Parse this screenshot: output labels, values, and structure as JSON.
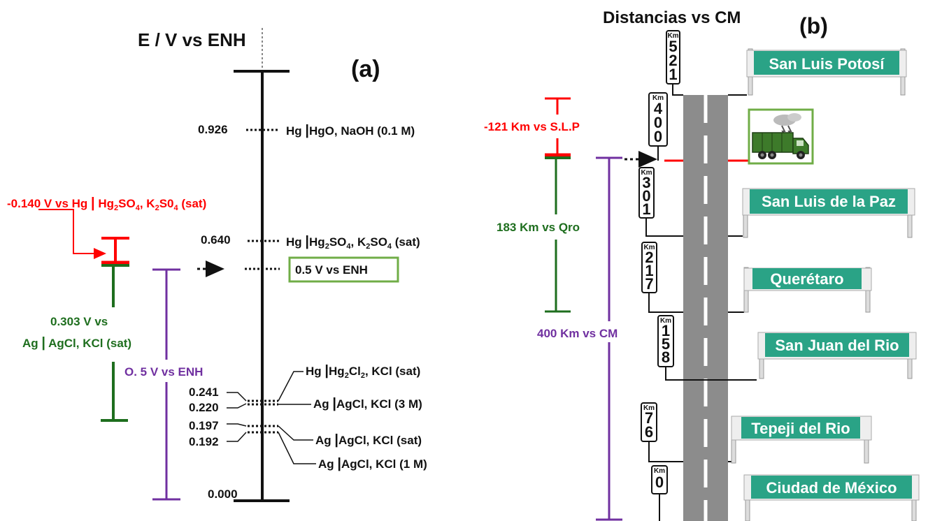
{
  "panel_a": {
    "axis_title": "E / V vs ENH",
    "label": "(a)",
    "colors": {
      "red": "#ff0000",
      "green": "#1e6e1e",
      "purple": "#7030a0",
      "box": "#70ad47",
      "black": "#111111"
    },
    "levels": {
      "hgo": {
        "value": "0.926",
        "electrode": "Hg",
        "sep": "|",
        "solution": "HgO, NaOH (0.1 M)"
      },
      "hg2so4": {
        "value": "0.640",
        "electrode": "Hg",
        "sep": "|",
        "solution_1": "Hg",
        "sub_1": "2",
        "solution_2": "SO",
        "sub_2": "4",
        "solution_3": ", K",
        "sub_3": "2",
        "solution_4": "SO",
        "sub_4": "4",
        "solution_5": " (sat)"
      },
      "target": {
        "boxed": "0.5 V vs ENH"
      },
      "calomel": {
        "electrode": "Hg",
        "sep": "|",
        "p1": "Hg",
        "s1": "2",
        "p2": "Cl",
        "s2": "2",
        "p3": ", KCl (sat)"
      },
      "agcl_3m": {
        "value": "0.220",
        "electrode": "Ag",
        "sep": "|",
        "solution": "AgCl, KCl (3 M)"
      },
      "agcl_sat": {
        "value": "0.197",
        "electrode": "Ag",
        "sep": "|",
        "solution": "AgCl, KCl (sat)"
      },
      "agcl_1m": {
        "value": "0.192",
        "electrode": "Ag",
        "sep": "|",
        "solution": "AgCl, KCl (1 M)"
      },
      "calomel_value": "0.241",
      "zero": "0.000"
    },
    "red_label": {
      "t1": "-0.140 V vs Hg ",
      "sep": "|",
      "t2": " Hg",
      "s1": "2",
      "t3": "SO",
      "s2": "4",
      "t4": ", K",
      "s3": "2",
      "t5": "S0",
      "s4": "4",
      "t6": " (sat)"
    },
    "green_label": {
      "line1": "0.303 V vs",
      "line2_a": "Ag ",
      "sep": "|",
      "line2_b": " AgCl, KCl (sat)"
    },
    "purple_label": "O. 5 V vs ENH"
  },
  "panel_b": {
    "title": "Distancias vs CM",
    "label": "(b)",
    "red_label": "-121 Km vs  S.L.P",
    "green_label": "183 Km vs Qro",
    "purple_label": "400 Km vs CM",
    "km_prefix": "Km",
    "markers": [
      {
        "km": "521",
        "digits": [
          "5",
          "2",
          "1"
        ]
      },
      {
        "km": "400",
        "digits": [
          "4",
          "0",
          "0"
        ]
      },
      {
        "km": "301",
        "digits": [
          "3",
          "0",
          "1"
        ]
      },
      {
        "km": "217",
        "digits": [
          "2",
          "1",
          "7"
        ]
      },
      {
        "km": "158",
        "digits": [
          "1",
          "5",
          "8"
        ]
      },
      {
        "km": "76",
        "digits": [
          "7",
          "6"
        ]
      },
      {
        "km": "0",
        "digits": [
          "0"
        ]
      }
    ],
    "cities": [
      {
        "name": "San Luis Potosí"
      },
      {
        "name": "San Luis de la Paz"
      },
      {
        "name": "Querétaro"
      },
      {
        "name": "San Juan del Rio"
      },
      {
        "name": "Tepeji del Rio"
      },
      {
        "name": "Ciudad de México"
      }
    ],
    "colors": {
      "sign": "#2aa386",
      "road": "#8c8c8c",
      "truck": "#3d7a2a",
      "box": "#70ad47"
    },
    "truck_icon": "truck-icon"
  }
}
